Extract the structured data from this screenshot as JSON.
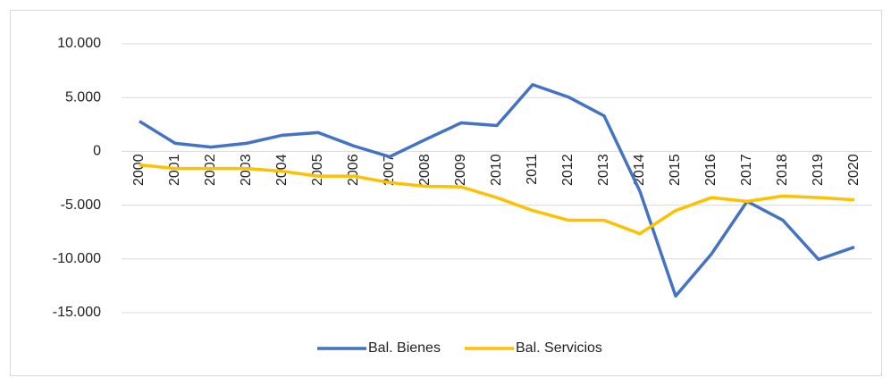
{
  "chart_data": {
    "type": "line",
    "categories": [
      "2000",
      "2001",
      "2002",
      "2003",
      "2004",
      "2005",
      "2006",
      "2007",
      "2008",
      "2009",
      "2010",
      "2011",
      "2012",
      "2013",
      "2014",
      "2015",
      "2016",
      "2017",
      "2018",
      "2019",
      "2020"
    ],
    "series": [
      {
        "name": "Bal. Bienes",
        "color": "#4472c4",
        "values": [
          2800,
          750,
          400,
          750,
          1500,
          1750,
          500,
          -500,
          1100,
          2650,
          2400,
          6200,
          5050,
          3300,
          -3700,
          -13450,
          -9550,
          -4650,
          -6400,
          -10050,
          -8900
        ]
      },
      {
        "name": "Bal. Servicios",
        "color": "#ffc000",
        "values": [
          -1250,
          -1600,
          -1600,
          -1600,
          -1850,
          -2300,
          -2300,
          -2900,
          -3250,
          -3300,
          -4300,
          -5500,
          -6400,
          -6400,
          -7650,
          -5500,
          -4300,
          -4650,
          -4150,
          -4300,
          -4500
        ]
      }
    ],
    "ylim": [
      -15000,
      10000
    ],
    "yticks": [
      {
        "value": 10000,
        "label": "10.000"
      },
      {
        "value": 5000,
        "label": "5.000"
      },
      0,
      {
        "value": -5000,
        "label": "-5.000"
      },
      {
        "value": -10000,
        "label": "-10.000"
      },
      {
        "value": -15000,
        "label": "-15.000"
      }
    ],
    "grid": true,
    "legend": "bottom"
  }
}
